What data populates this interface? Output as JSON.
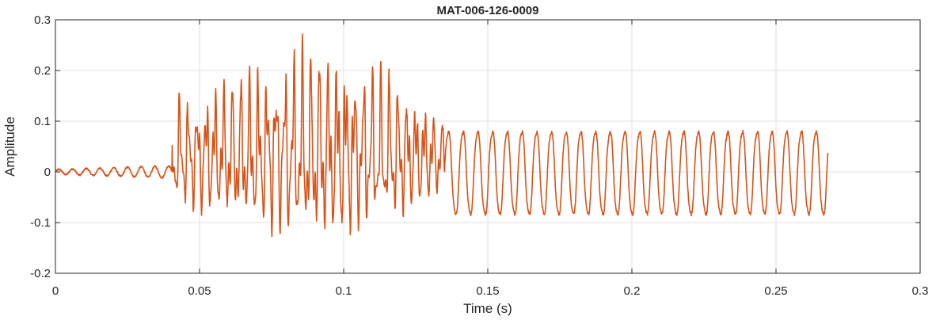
{
  "chart_data": {
    "type": "line",
    "title": "MAT-006-126-0009",
    "xlabel": "Time (s)",
    "ylabel": "Amplitude",
    "xlim": [
      0,
      0.3
    ],
    "ylim": [
      -0.2,
      0.3
    ],
    "x_ticks": [
      0,
      0.05,
      0.1,
      0.15,
      0.2,
      0.25,
      0.3
    ],
    "x_tick_labels": [
      "0",
      "0.05",
      "0.1",
      "0.15",
      "0.2",
      "0.25",
      "0.3"
    ],
    "y_ticks": [
      -0.2,
      -0.1,
      0,
      0.1,
      0.2,
      0.3
    ],
    "y_tick_labels": [
      "-0.2",
      "-0.1",
      "0",
      "0.1",
      "0.2",
      "0.3"
    ],
    "grid": true,
    "series": [
      {
        "color": "#D95319",
        "sample_step": 0.0001,
        "signal": {
          "x_end": 0.268,
          "onset": 0.0405,
          "segments": [
            {
              "x": [
                0,
                0.0405
              ],
              "shape": "low-level noise",
              "envelope_max": 0.012
            },
            {
              "x": [
                0.0405,
                0.135
              ],
              "shape": "dense oscillation",
              "envelope_max": [
                0.275,
                -0.175
              ],
              "peak_at": 0.09
            },
            {
              "x": [
                0.135,
                0.268
              ],
              "shape": "periodic oscillation",
              "frequency_hz": 196,
              "max": 0.087,
              "min": -0.092
            }
          ],
          "end_value": 0.035
        }
      }
    ]
  }
}
